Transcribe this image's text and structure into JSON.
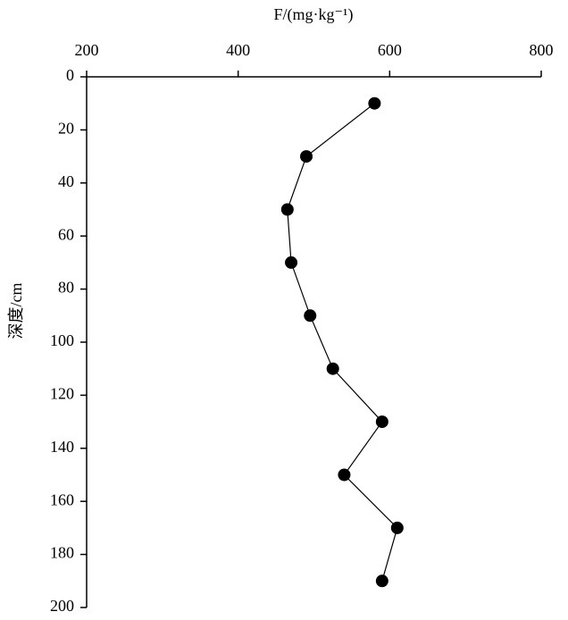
{
  "chart_data": {
    "type": "line",
    "x_label": "F/(mg·kg⁻¹)",
    "y_label": "深度/cm",
    "x": [
      580,
      490,
      465,
      470,
      495,
      525,
      590,
      540,
      610,
      590
    ],
    "y": [
      10,
      30,
      50,
      70,
      90,
      110,
      130,
      150,
      170,
      190
    ],
    "color": "#000000",
    "xlim": [
      200,
      800
    ],
    "xticks": [
      200,
      400,
      600,
      800
    ],
    "ylim": [
      0,
      200
    ],
    "yticks": [
      0,
      20,
      40,
      60,
      80,
      100,
      120,
      140,
      160,
      180,
      200
    ],
    "y_inverted": true,
    "x_axis_position": "top",
    "grid": false
  }
}
